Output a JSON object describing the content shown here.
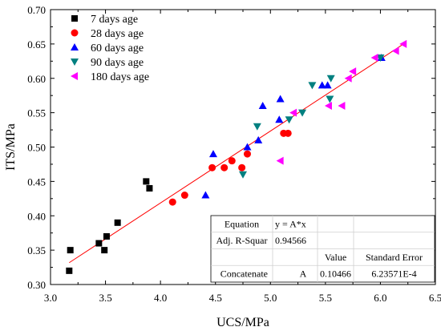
{
  "chart_data": {
    "type": "scatter",
    "xlabel": "UCS/MPa",
    "ylabel": "ITS/MPa",
    "xlim": [
      3.0,
      6.5
    ],
    "ylim": [
      0.3,
      0.7
    ],
    "xticks": [
      3.0,
      3.5,
      4.0,
      4.5,
      5.0,
      5.5,
      6.0,
      6.5
    ],
    "yticks": [
      0.3,
      0.35,
      0.4,
      0.45,
      0.5,
      0.55,
      0.6,
      0.65,
      0.7
    ],
    "xtick_labels": [
      "3.0",
      "3.5",
      "4.0",
      "4.5",
      "5.0",
      "5.5",
      "6.0",
      "6.5"
    ],
    "ytick_labels": [
      "0.30",
      "0.35",
      "0.40",
      "0.45",
      "0.50",
      "0.55",
      "0.60",
      "0.65",
      "0.70"
    ],
    "grid": false,
    "legend_position": "top-left",
    "series": [
      {
        "name": "7 days age",
        "marker": "square",
        "color": "#000000",
        "points": [
          [
            3.17,
            0.32
          ],
          [
            3.18,
            0.35
          ],
          [
            3.44,
            0.36
          ],
          [
            3.49,
            0.35
          ],
          [
            3.51,
            0.37
          ],
          [
            3.61,
            0.39
          ],
          [
            3.87,
            0.45
          ],
          [
            3.9,
            0.44
          ]
        ]
      },
      {
        "name": "28 days age",
        "marker": "circle",
        "color": "#ff0000",
        "points": [
          [
            4.11,
            0.42
          ],
          [
            4.22,
            0.43
          ],
          [
            4.47,
            0.47
          ],
          [
            4.58,
            0.47
          ],
          [
            4.65,
            0.48
          ],
          [
            4.74,
            0.47
          ],
          [
            4.79,
            0.49
          ],
          [
            5.12,
            0.52
          ],
          [
            5.16,
            0.52
          ]
        ]
      },
      {
        "name": "60 days age",
        "marker": "triangle-up",
        "color": "#0000ff",
        "points": [
          [
            4.41,
            0.43
          ],
          [
            4.48,
            0.49
          ],
          [
            4.79,
            0.5
          ],
          [
            4.89,
            0.51
          ],
          [
            4.93,
            0.56
          ],
          [
            5.08,
            0.54
          ],
          [
            5.09,
            0.57
          ],
          [
            5.47,
            0.59
          ],
          [
            5.52,
            0.59
          ],
          [
            6.01,
            0.63
          ]
        ]
      },
      {
        "name": "90 days age",
        "marker": "triangle-down",
        "color": "#008080",
        "points": [
          [
            4.75,
            0.46
          ],
          [
            4.88,
            0.53
          ],
          [
            5.17,
            0.54
          ],
          [
            5.29,
            0.55
          ],
          [
            5.38,
            0.59
          ],
          [
            5.54,
            0.57
          ],
          [
            5.55,
            0.6
          ],
          [
            6.0,
            0.63
          ]
        ]
      },
      {
        "name": "180 days age",
        "marker": "triangle-left",
        "color": "#ff00ff",
        "points": [
          [
            5.09,
            0.48
          ],
          [
            5.21,
            0.55
          ],
          [
            5.53,
            0.56
          ],
          [
            5.65,
            0.56
          ],
          [
            5.71,
            0.6
          ],
          [
            5.75,
            0.61
          ],
          [
            5.95,
            0.63
          ],
          [
            6.14,
            0.64
          ],
          [
            6.21,
            0.65
          ]
        ]
      }
    ],
    "fit_line": {
      "color": "#ff0000",
      "slope": 0.10466,
      "x_range": [
        3.17,
        6.21
      ]
    },
    "fit_table": {
      "rows": [
        [
          "Equation",
          "y = A*x",
          "",
          ""
        ],
        [
          "Adj. R-Squar",
          "0.94566",
          "",
          ""
        ],
        [
          "",
          "",
          "Value",
          "Standard Error"
        ],
        [
          "Concatenate",
          "A",
          "0.10466",
          "6.23571E-4"
        ]
      ]
    }
  }
}
